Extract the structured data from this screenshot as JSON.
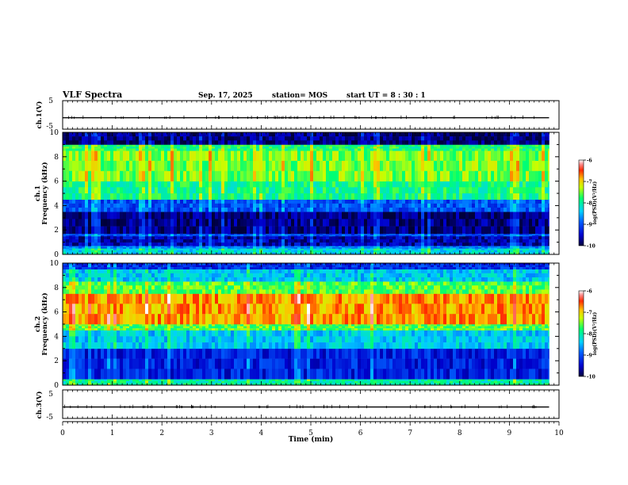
{
  "header": {
    "title": "VLF Spectra",
    "date": "Sep. 17, 2025",
    "station": "station= MOS",
    "start_ut": "start UT =   8 : 30 : 1"
  },
  "chart_data": [
    {
      "type": "line",
      "name": "ch1-voltage",
      "ylabel": "ch.1(V)",
      "ylim": [
        -5,
        5
      ],
      "yticks": [
        "5",
        "-5"
      ],
      "x": [
        0,
        9.8
      ],
      "values": [
        -1,
        -1
      ]
    },
    {
      "type": "heatmap",
      "name": "ch1-spectrogram",
      "ylabel": [
        "ch.1",
        "Frequency (kHz)"
      ],
      "ylim": [
        0,
        10
      ],
      "yticks": [
        "0",
        "2",
        "4",
        "6",
        "8",
        "10"
      ],
      "xlim": [
        0,
        10
      ],
      "data_end_min": 9.8,
      "bands": [
        {
          "f": [
            0.0,
            0.5
          ],
          "level": -8.3
        },
        {
          "f": [
            0.5,
            0.7
          ],
          "level": -8.8
        },
        {
          "f": [
            0.7,
            1.5
          ],
          "level": -9.6
        },
        {
          "f": [
            1.5,
            1.7
          ],
          "level": -9.0
        },
        {
          "f": [
            1.7,
            3.5
          ],
          "level": -9.8
        },
        {
          "f": [
            3.5,
            4.5
          ],
          "level": -9.0
        },
        {
          "f": [
            4.5,
            6.0
          ],
          "level": -7.9
        },
        {
          "f": [
            6.0,
            8.5
          ],
          "level": -7.5
        },
        {
          "f": [
            8.5,
            9.0
          ],
          "level": -7.8
        },
        {
          "f": [
            9.0,
            10.0
          ],
          "level": -9.8
        }
      ],
      "colorbar": {
        "label": "log(PSD)(V²/Hz)",
        "ticks": [
          "-6",
          "-7",
          "-8",
          "-9",
          "-10"
        ],
        "range": [
          -10,
          -6
        ]
      }
    },
    {
      "type": "heatmap",
      "name": "ch2-spectrogram",
      "ylabel": [
        "ch.2",
        "Frequency (kHz)"
      ],
      "ylim": [
        0,
        10
      ],
      "yticks": [
        "0",
        "2",
        "4",
        "6",
        "8",
        "10"
      ],
      "xlim": [
        0,
        10
      ],
      "data_end_min": 9.8,
      "bands": [
        {
          "f": [
            0.0,
            0.5
          ],
          "level": -8.0
        },
        {
          "f": [
            0.5,
            3.0
          ],
          "level": -9.3
        },
        {
          "f": [
            3.0,
            4.5
          ],
          "level": -8.4
        },
        {
          "f": [
            4.5,
            5.0
          ],
          "level": -7.6
        },
        {
          "f": [
            5.0,
            7.5
          ],
          "level": -6.8
        },
        {
          "f": [
            7.5,
            8.5
          ],
          "level": -7.6
        },
        {
          "f": [
            8.5,
            9.5
          ],
          "level": -8.4
        },
        {
          "f": [
            9.5,
            10.0
          ],
          "level": -9.2
        }
      ],
      "colorbar": {
        "label": "log(PSD)(V²/Hz)",
        "ticks": [
          "-6",
          "-7",
          "-8",
          "-9",
          "-10"
        ],
        "range": [
          -10,
          -6
        ]
      }
    },
    {
      "type": "line",
      "name": "ch3-voltage",
      "ylabel": "ch.3(V)",
      "ylim": [
        -5,
        5
      ],
      "yticks": [
        "5",
        "-5"
      ],
      "x": [
        0,
        9.8
      ],
      "values": [
        -1,
        -1
      ]
    }
  ],
  "xaxis": {
    "label": "Time (min)",
    "ticks": [
      "0",
      "1",
      "2",
      "3",
      "4",
      "5",
      "6",
      "7",
      "8",
      "9",
      "10"
    ],
    "range": [
      0,
      10
    ]
  }
}
